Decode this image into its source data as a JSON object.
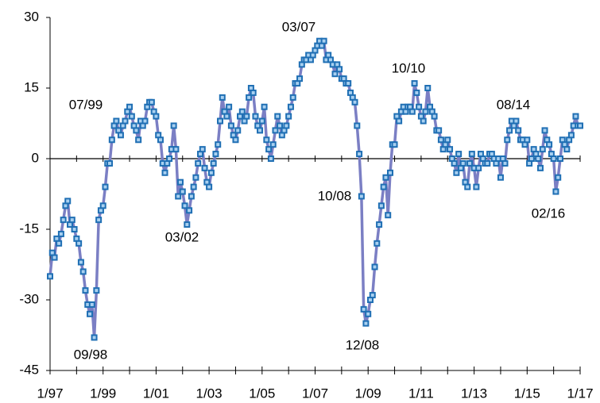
{
  "chart_data": {
    "type": "line",
    "categories": [
      "1/97",
      null,
      null,
      null,
      null,
      null,
      null,
      null,
      null,
      null,
      null,
      null,
      null,
      null,
      null,
      null,
      null,
      null,
      null,
      null,
      null,
      null,
      null,
      null,
      "1/99",
      null,
      null,
      null,
      null,
      null,
      null,
      null,
      null,
      null,
      null,
      null,
      null,
      null,
      null,
      null,
      null,
      null,
      null,
      null,
      null,
      null,
      null,
      null,
      "1/01",
      null,
      null,
      null,
      null,
      null,
      null,
      null,
      null,
      null,
      null,
      null,
      null,
      null,
      null,
      null,
      null,
      null,
      null,
      null,
      null,
      null,
      null,
      null,
      "1/03",
      null,
      null,
      null,
      null,
      null,
      null,
      null,
      null,
      null,
      null,
      null,
      null,
      null,
      null,
      null,
      null,
      null,
      null,
      null,
      null,
      null,
      null,
      null,
      "1/05",
      null,
      null,
      null,
      null,
      null,
      null,
      null,
      null,
      null,
      null,
      null,
      null,
      null,
      null,
      null,
      null,
      null,
      null,
      null,
      null,
      null,
      null,
      null,
      "1/07",
      null,
      null,
      null,
      null,
      null,
      null,
      null,
      null,
      null,
      null,
      null,
      null,
      null,
      null,
      null,
      null,
      null,
      null,
      null,
      null,
      null,
      null,
      null,
      "1/09",
      null,
      null,
      null,
      null,
      null,
      null,
      null,
      null,
      null,
      null,
      null,
      null,
      null,
      null,
      null,
      null,
      null,
      null,
      null,
      null,
      null,
      null,
      null,
      "1/11",
      null,
      null,
      null,
      null,
      null,
      null,
      null,
      null,
      null,
      null,
      null,
      null,
      null,
      null,
      null,
      null,
      null,
      null,
      null,
      null,
      null,
      null,
      null,
      "1/13",
      null,
      null,
      null,
      null,
      null,
      null,
      null,
      null,
      null,
      null,
      null,
      null,
      null,
      null,
      null,
      null,
      null,
      null,
      null,
      null,
      null,
      null,
      null,
      "1/15",
      null,
      null,
      null,
      null,
      null,
      null,
      null,
      null,
      null,
      null,
      null,
      null,
      null,
      null,
      null,
      null,
      null,
      null,
      null,
      null,
      null,
      null,
      null,
      "1/17"
    ],
    "values": [
      -25,
      -20,
      -21,
      -17,
      -18,
      -16,
      -13,
      -10,
      -9,
      -14,
      -13,
      -15,
      -17,
      -18,
      -22,
      -24,
      -28,
      -31,
      -33,
      -31,
      -38,
      -28,
      -13,
      -11,
      -10,
      -6,
      -1,
      -1,
      4,
      7,
      8,
      6,
      5,
      7,
      8,
      10,
      11,
      9,
      7,
      6,
      4,
      8,
      7,
      8,
      11,
      12,
      12,
      10,
      9,
      5,
      4,
      -1,
      -3,
      -1,
      0,
      2,
      7,
      2,
      -8,
      -5,
      -7,
      -10,
      -14,
      -11,
      -8,
      -6,
      -4,
      -1,
      1,
      2,
      -2,
      -5,
      -6,
      -3,
      -1,
      1,
      3,
      8,
      13,
      10,
      9,
      11,
      7,
      5,
      4,
      6,
      9,
      10,
      8,
      9,
      13,
      15,
      14,
      9,
      7,
      6,
      8,
      11,
      4,
      2,
      0,
      3,
      6,
      9,
      7,
      5,
      6,
      7,
      9,
      11,
      13,
      16,
      16,
      17,
      20,
      21,
      21,
      22,
      21,
      22,
      23,
      24,
      25,
      24,
      25,
      21,
      22,
      21,
      20,
      18,
      20,
      19,
      17,
      17,
      16,
      16,
      14,
      13,
      12,
      7,
      1,
      -8,
      -32,
      -35,
      -33,
      -30,
      -29,
      -23,
      -18,
      -14,
      -10,
      -6,
      -4,
      -12,
      -3,
      3,
      3,
      9,
      8,
      10,
      11,
      10,
      11,
      11,
      10,
      16,
      14,
      11,
      9,
      8,
      10,
      15,
      11,
      10,
      9,
      6,
      6,
      4,
      2,
      3,
      4,
      2,
      0,
      -1,
      -3,
      1,
      -2,
      -1,
      -5,
      -6,
      -1,
      1,
      -2,
      -6,
      -2,
      1,
      0,
      -1,
      -1,
      1,
      1,
      0,
      -1,
      0,
      -4,
      0,
      -1,
      4,
      6,
      8,
      7,
      8,
      6,
      4,
      4,
      3,
      4,
      -1,
      0,
      2,
      1,
      0,
      -2,
      2,
      6,
      4,
      3,
      1,
      0,
      -7,
      -4,
      0,
      4,
      3,
      2,
      4,
      5,
      7,
      9,
      7,
      7
    ],
    "color": "#7b7fc4",
    "marker_color": "#1f6fb4",
    "ylim": [
      -45,
      30
    ],
    "yticks": [
      -45,
      -30,
      -15,
      0,
      15,
      30
    ],
    "annotations": [
      "07/99",
      "09/98",
      "03/02",
      "03/07",
      "10/08",
      "12/08",
      "10/10",
      "08/14",
      "02/16"
    ],
    "annotation_color": "#e8312f"
  }
}
